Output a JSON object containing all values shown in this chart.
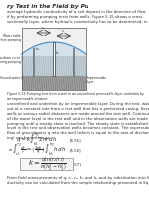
{
  "title_text": "ry Test in the Field by Pumping from Wells",
  "title_fontsize": 4.2,
  "body_text_1": "average hydraulic conductivity of a soil deposit in the direction of flow\nif by performing pumping tests from wells. Figure 5.15 shows a cross-\nsectionally layer, where hydraulic conductivity has to be determined, in",
  "diagram_label": "Figure 5.15 Pumping test from a well in an unconfined permeable layer underlain by\nan impermeable stratum",
  "body_text_2": "unconfined and underlain by an impermeable layer. During the test, water is pumped\nout at a constant rate from a test well that has a perforated casing. Several observation\nwells at various radial distances are made around the test well. Continuous observation\nof the water level in the test well and in the observation wells are made after the start of\npumping until a steady state is reached. The steady state is established when the water\nlevel in the test and observation wells becomes constant. The expression for the rate of\nflow of groundwater q into the well (which is equal to the rate of discharge from pump-\ning) can be written as:",
  "eq1_label": "[5.55]",
  "eq1": "q = k \\int_{h_1}^{h_2} 2\\pi r \\, dh",
  "eq2_label": "[5.56]",
  "eq2": "\\int_{r_1}^{r_2} \\frac{dr}{r} = \\left(\\frac{2\\pi k}{q}\\right) \\int_{h_1}^{h_2} h \\, dh",
  "result_label": "[5.57]",
  "result_eq": "k = \\frac{q \\ln(r_2/r_1)}{\\pi(h_2^2 - h_1^2)}",
  "footer_text": "From field measurements of q, r₁, r₂, h₁ and h₂ and by substitution into the hydraulic con-\nductivity can be calculated from the simple relationship presented in Eq. (5.57).",
  "bg_color": "#ffffff",
  "text_color": "#2a2a2a",
  "diagram_bg": "#e8e8e8",
  "fig_width": 1.49,
  "fig_height": 1.98,
  "dpi": 100
}
